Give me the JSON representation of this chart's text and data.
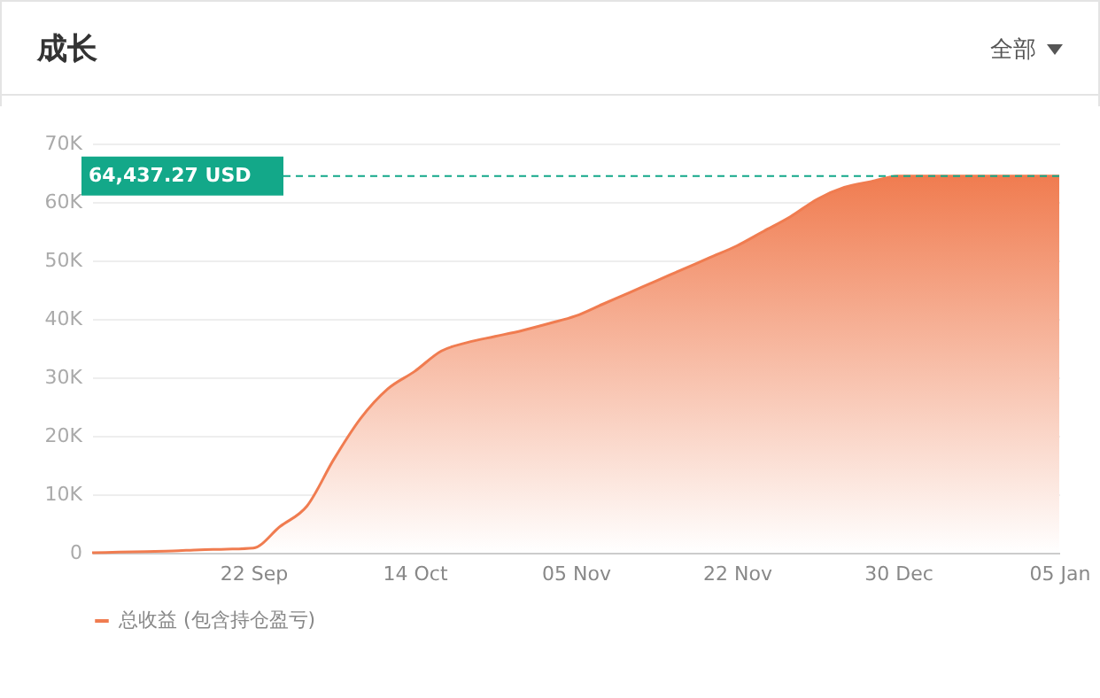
{
  "chart_data": {
    "type": "area",
    "title": "成长",
    "annotations": [
      "全部"
    ],
    "categories": [
      null,
      null,
      null,
      null,
      null,
      null,
      "22 Sep",
      null,
      null,
      null,
      null,
      null,
      "14 Oct",
      null,
      null,
      null,
      null,
      null,
      "05 Nov",
      null,
      null,
      null,
      null,
      null,
      "22 Nov",
      null,
      null,
      null,
      null,
      null,
      "30 Dec",
      null,
      null,
      null,
      null,
      null,
      "05 Jan"
    ],
    "series": [
      {
        "name": "总收益 (包含持仓盈亏)",
        "color": "#f07c50",
        "values": [
          0,
          100,
          200,
          300,
          500,
          600,
          800,
          4500,
          8000,
          16000,
          23000,
          28000,
          31000,
          34500,
          36000,
          37000,
          38000,
          39200,
          40500,
          42500,
          44500,
          46500,
          48500,
          50500,
          52500,
          55000,
          57500,
          60500,
          62500,
          63500,
          64437.27,
          64437.27,
          64437.27,
          64437.27,
          64437.27,
          64437.27,
          64437.27
        ]
      }
    ],
    "ylim": [
      0,
      70000
    ],
    "yticks": [
      {
        "value": 0,
        "label": "0"
      },
      {
        "value": 10000,
        "label": "10K"
      },
      {
        "value": 20000,
        "label": "20K"
      },
      {
        "value": 30000,
        "label": "30K"
      },
      {
        "value": 40000,
        "label": "40K"
      },
      {
        "value": 50000,
        "label": "50K"
      },
      {
        "value": 60000,
        "label": "60K"
      },
      {
        "value": 70000,
        "label": "70K"
      }
    ],
    "ref_lines": [
      {
        "axis": "y",
        "value": 64437.27,
        "label": "64,437.27 USD",
        "color": "#13a889",
        "line_style": "dashed"
      }
    ],
    "grid": "y",
    "legend": "bottom"
  }
}
